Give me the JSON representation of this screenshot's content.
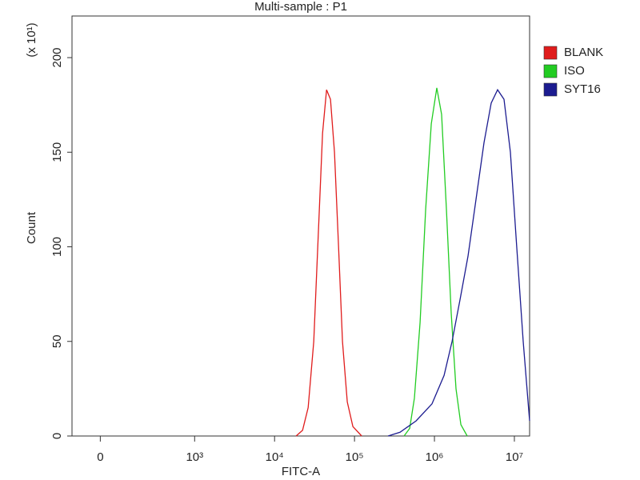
{
  "chart_data": {
    "type": "line",
    "title": "Multi-sample : P1",
    "x_label": "FITC-A",
    "y_label": "Count",
    "y_multiplier": "(x 10¹)",
    "xscale": "biexponential",
    "xlim": [
      -300,
      15500000
    ],
    "xticks": [
      0,
      {
        "value": 1000,
        "label": "10³"
      },
      {
        "value": 10000,
        "label": "10⁴"
      },
      {
        "value": 100000,
        "label": "10⁵"
      },
      {
        "value": 1000000,
        "label": "10⁶"
      },
      {
        "value": 10000000,
        "label": "10⁷"
      }
    ],
    "ylim": [
      0,
      222
    ],
    "yticks": [
      0,
      50,
      100,
      150,
      200
    ],
    "legend": "right",
    "series": [
      {
        "name": "BLANK",
        "color": "#e01c1c",
        "x": [
          18600,
          22400,
          26300,
          30900,
          35500,
          39800,
          44700,
          50100,
          56200,
          63100,
          70800,
          81300,
          95500,
          123000
        ],
        "values": [
          0,
          3,
          15,
          50,
          110,
          160,
          183,
          178,
          150,
          100,
          50,
          18,
          5,
          0
        ]
      },
      {
        "name": "ISO",
        "color": "#22cc22",
        "x": [
          417000,
          490000,
          562000,
          661000,
          776000,
          912000,
          1070000,
          1230000,
          1410000,
          1620000,
          1860000,
          2140000,
          2570000
        ],
        "values": [
          0,
          4,
          20,
          60,
          120,
          165,
          184,
          170,
          120,
          65,
          25,
          6,
          0
        ]
      },
      {
        "name": "SYT16",
        "color": "#1c1c90",
        "x": [
          263000,
          372000,
          589000,
          933000,
          1320000,
          1660000,
          2090000,
          2630000,
          3310000,
          4170000,
          5130000,
          6170000,
          7410000,
          8910000,
          10700000,
          12900000,
          15500000
        ],
        "values": [
          0,
          2,
          8,
          17,
          32,
          50,
          72,
          95,
          125,
          155,
          176,
          183,
          178,
          150,
          100,
          50,
          8
        ]
      }
    ]
  }
}
